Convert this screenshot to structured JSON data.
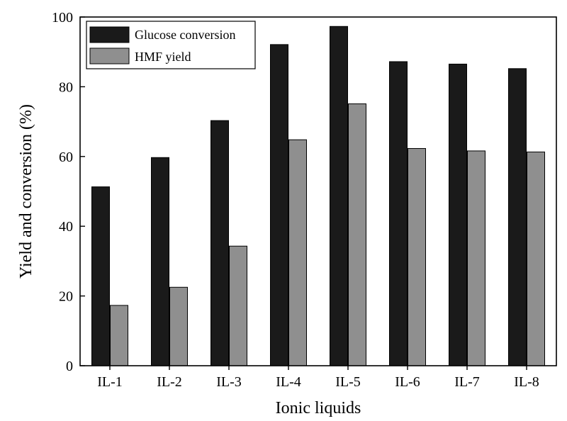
{
  "chart_data": {
    "type": "bar",
    "categories": [
      "IL-1",
      "IL-2",
      "IL-3",
      "IL-4",
      "IL-5",
      "IL-6",
      "IL-7",
      "IL-8"
    ],
    "series": [
      {
        "name": "Glucose conversion",
        "color": "#1a1a1a",
        "values": [
          51.3,
          59.7,
          70.3,
          92.1,
          97.3,
          87.2,
          86.5,
          85.2
        ]
      },
      {
        "name": "HMF yield",
        "color": "#8f8f8f",
        "values": [
          17.3,
          22.5,
          34.3,
          64.8,
          75.1,
          62.3,
          61.6,
          61.3
        ]
      }
    ],
    "xlabel": "Ionic liquids",
    "ylabel": "Yield and conversion (%)",
    "ylim": [
      0,
      100
    ],
    "yticks": [
      "0",
      "20",
      "40",
      "60",
      "80",
      "100"
    ],
    "grid": false,
    "legend_position": "top-left"
  }
}
